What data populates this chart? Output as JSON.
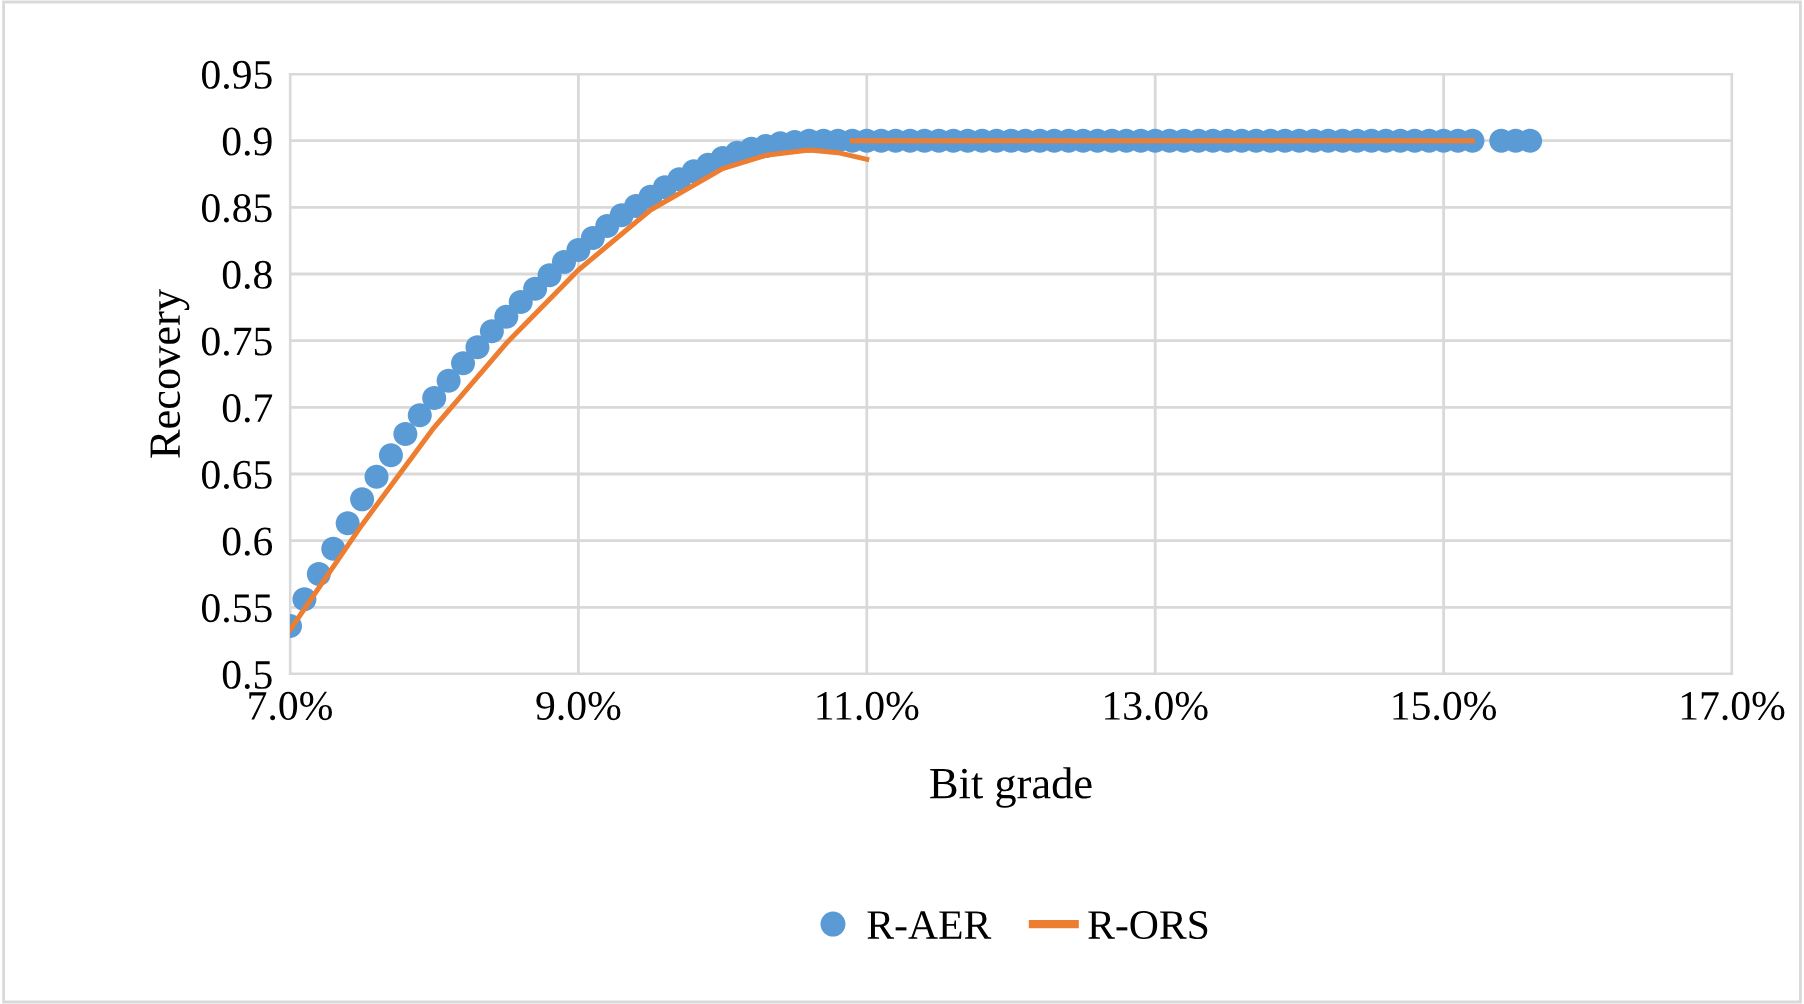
{
  "chart_data": {
    "type": "scatter",
    "xlabel": "Bit grade",
    "ylabel": "Recovery",
    "xlim": [
      7.0,
      17.0
    ],
    "xticks": [
      {
        "value": 7.0,
        "label": "7.0%"
      },
      {
        "value": 9.0,
        "label": "9.0%"
      },
      {
        "value": 11.0,
        "label": "11.0%"
      },
      {
        "value": 13.0,
        "label": "13.0%"
      },
      {
        "value": 15.0,
        "label": "15.0%"
      },
      {
        "value": 17.0,
        "label": "17.0%"
      }
    ],
    "ylim": [
      0.5,
      0.95
    ],
    "yticks": [
      0.5,
      0.55,
      0.6,
      0.65,
      0.7,
      0.75,
      0.8,
      0.85,
      0.9,
      0.95
    ],
    "grid": true,
    "legend": "bottom",
    "series": [
      {
        "name": "R-AER",
        "marker": "circle",
        "color": "#5b9bd5",
        "x": [
          7.0,
          7.1,
          7.2,
          7.3,
          7.4,
          7.5,
          7.6,
          7.7,
          7.8,
          7.9,
          8.0,
          8.1,
          8.2,
          8.3,
          8.4,
          8.5,
          8.6,
          8.7,
          8.8,
          8.9,
          9.0,
          9.1,
          9.2,
          9.3,
          9.4,
          9.5,
          9.6,
          9.7,
          9.8,
          9.9,
          10.0,
          10.1,
          10.2,
          10.3,
          10.4,
          10.5,
          10.6,
          10.7,
          10.8,
          10.9,
          11.0,
          11.1,
          11.2,
          11.3,
          11.4,
          11.5,
          11.6,
          11.7,
          11.8,
          11.9,
          12.0,
          12.1,
          12.2,
          12.3,
          12.4,
          12.5,
          12.6,
          12.7,
          12.8,
          12.9,
          13.0,
          13.1,
          13.2,
          13.3,
          13.4,
          13.5,
          13.6,
          13.7,
          13.8,
          13.9,
          14.0,
          14.1,
          14.2,
          14.3,
          14.4,
          14.5,
          14.6,
          14.7,
          14.8,
          14.9,
          15.0,
          15.1,
          15.2,
          15.4,
          15.5,
          15.6
        ],
        "values": [
          0.536,
          0.556,
          0.575,
          0.594,
          0.613,
          0.631,
          0.648,
          0.664,
          0.68,
          0.694,
          0.707,
          0.72,
          0.733,
          0.745,
          0.757,
          0.768,
          0.779,
          0.789,
          0.799,
          0.809,
          0.818,
          0.827,
          0.836,
          0.844,
          0.851,
          0.858,
          0.865,
          0.871,
          0.877,
          0.882,
          0.887,
          0.891,
          0.894,
          0.896,
          0.898,
          0.899,
          0.9,
          0.9,
          0.9,
          0.9,
          0.9,
          0.9,
          0.9,
          0.9,
          0.9,
          0.9,
          0.9,
          0.9,
          0.9,
          0.9,
          0.9,
          0.9,
          0.9,
          0.9,
          0.9,
          0.9,
          0.9,
          0.9,
          0.9,
          0.9,
          0.9,
          0.9,
          0.9,
          0.9,
          0.9,
          0.9,
          0.9,
          0.9,
          0.9,
          0.9,
          0.9,
          0.9,
          0.9,
          0.9,
          0.9,
          0.9,
          0.9,
          0.9,
          0.9,
          0.9,
          0.9,
          0.9,
          0.9,
          0.9,
          0.9,
          0.9
        ]
      },
      {
        "name": "R-ORS",
        "type": "line",
        "marker": "none",
        "line_style": "solid",
        "color": "#ed7d31",
        "x": [
          7.0,
          7.5,
          8.0,
          8.5,
          9.0,
          9.5,
          10.0,
          10.3,
          10.6,
          10.8,
          11.0
        ],
        "values": [
          0.533,
          0.612,
          0.685,
          0.748,
          0.803,
          0.848,
          0.879,
          0.889,
          0.893,
          0.891,
          0.886
        ]
      },
      {
        "type": "line",
        "marker": "none",
        "line_style": "solid",
        "color": "#ed7d31",
        "x": [
          10.9,
          15.2
        ],
        "values": [
          0.9,
          0.9
        ]
      }
    ]
  }
}
